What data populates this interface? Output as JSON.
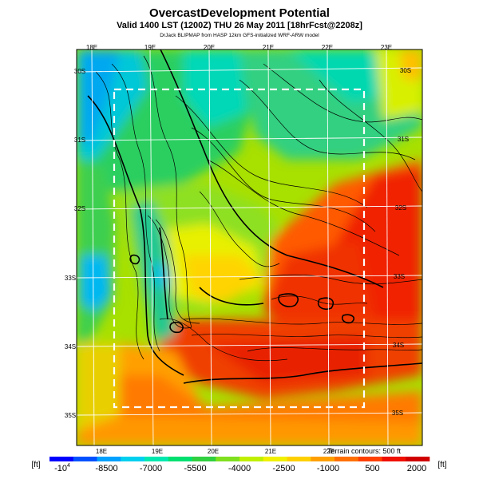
{
  "header": {
    "title": "OvercastDevelopment Potential",
    "subtitle": "Valid 1400 LST (1200Z) THU 26 May 2011 [18hrFcst@2208z]",
    "credit": "DrJack BLIPMAP from HASP 12km GFS-initialized WRF-ARW model"
  },
  "map": {
    "lon_labels_top": [
      "18E",
      "19E",
      "20E",
      "21E",
      "22E",
      "23E"
    ],
    "lon_labels_bottom": [
      "18E",
      "19E",
      "20E",
      "21E",
      "22E"
    ],
    "lat_labels_left": [
      "30S",
      "31S",
      "32S",
      "33S",
      "34S",
      "35S"
    ],
    "lat_labels_right": [
      "30S",
      "31S",
      "32S",
      "33S",
      "34S",
      "35S"
    ],
    "terrain_note": "Terrain contours: 500 ft"
  },
  "colorbar": {
    "unit_left": "[ft]",
    "unit_right": "[ft]",
    "ticks": [
      "-10^4",
      "-8500",
      "-7000",
      "-5500",
      "-4000",
      "-2500",
      "-1000",
      "500",
      "2000"
    ],
    "colors": [
      "#0000ff",
      "#0050ff",
      "#00a0ff",
      "#00d0f0",
      "#00e8b0",
      "#00e070",
      "#30d040",
      "#80e020",
      "#c0f000",
      "#f0f000",
      "#ffd000",
      "#ffa000",
      "#ff7000",
      "#ff4000",
      "#f01000",
      "#d00000"
    ]
  }
}
